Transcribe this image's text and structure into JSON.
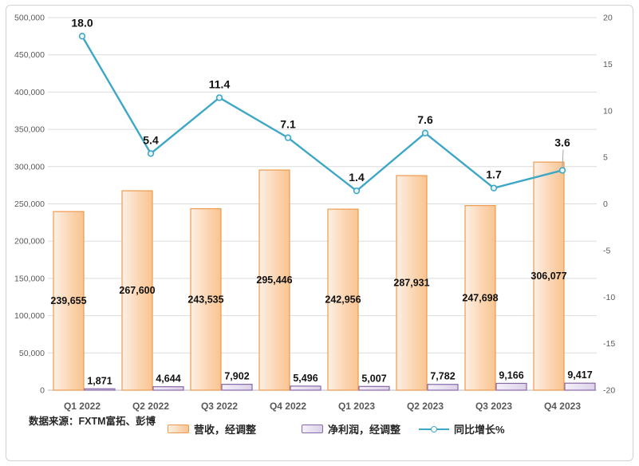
{
  "source_note": "数据来源：FXTM富拓、彭博",
  "legend": [
    {
      "label": "营收，经调整",
      "swatch": "orange-bar-swatch",
      "color": "#EC9A50"
    },
    {
      "label": "净利润，经调整",
      "swatch": "purple-bar-swatch",
      "color": "#8968A8"
    },
    {
      "label": "同比增长%",
      "swatch": "teal-line-swatch",
      "color": "#3EA7C8"
    }
  ],
  "colors": {
    "revenue_border": "#EC9A50",
    "revenue_fill_light": "#FDF0E5",
    "revenue_fill_dark": "#F9C490",
    "profit_border": "#8968A8",
    "profit_fill_light": "#F4F0F9",
    "profit_fill_dark": "#DCD2E8",
    "growth_line": "#3EA7C8",
    "grid": "#DBDBDB",
    "axis_text": "#595959"
  },
  "chart_data": {
    "type": "combo",
    "title": "",
    "categories": [
      "Q1 2022",
      "Q2 2022",
      "Q3 2022",
      "Q4 2022",
      "Q1 2023",
      "Q2 2023",
      "Q3 2023",
      "Q4 2023"
    ],
    "series": [
      {
        "name": "营收，经调整",
        "type": "bar",
        "axis": "left",
        "values": [
          239655,
          267600,
          243535,
          295446,
          242956,
          287931,
          247698,
          306077
        ]
      },
      {
        "name": "净利润，经调整",
        "type": "bar",
        "axis": "left",
        "values": [
          1871,
          4644,
          7902,
          5496,
          5007,
          7782,
          9166,
          9417
        ]
      },
      {
        "name": "同比增长%",
        "type": "line",
        "axis": "right",
        "values": [
          18.0,
          5.4,
          11.4,
          7.1,
          1.4,
          7.6,
          1.7,
          3.6
        ],
        "label_dy": [
          -12,
          -12,
          -12,
          -12,
          -12,
          -12,
          -12,
          -30
        ],
        "leader": [
          false,
          false,
          false,
          false,
          false,
          false,
          false,
          true
        ]
      }
    ],
    "left_axis": {
      "min": 0,
      "max": 500000,
      "step": 50000
    },
    "right_axis": {
      "min": -20,
      "max": 20,
      "step": 5
    },
    "grid": true,
    "legend_position": "bottom"
  }
}
